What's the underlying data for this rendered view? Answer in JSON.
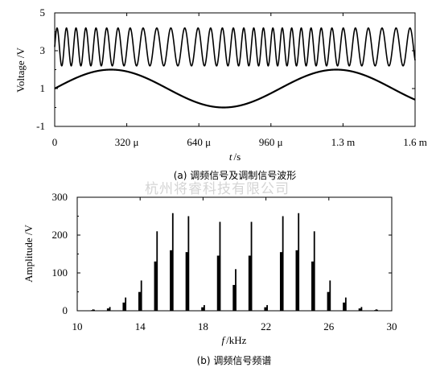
{
  "watermark": "杭州将睿科技有限公司",
  "chart_data": [
    {
      "type": "line",
      "caption": "(a) 调频信号及调制信号波形",
      "xlabel_italic": "t",
      "xlabel_unit": "/s",
      "ylabel": "Voltage /V",
      "xlim": [
        0,
        0.0016
      ],
      "ylim": [
        -1,
        5
      ],
      "xticks": [
        0,
        0.00032,
        0.00064,
        0.00096,
        0.00128,
        0.0016
      ],
      "xtick_labels": [
        "0",
        "320 μ",
        "640 μ",
        "960 μ",
        "1.3 m",
        "1.6 m"
      ],
      "yticks": [
        -1,
        1,
        3,
        5
      ],
      "ytick_labels": [
        "-1",
        "1",
        "3",
        "5"
      ],
      "series": [
        {
          "role": "fm-signal",
          "function": "sine-fm",
          "offset": 3.2,
          "amplitude": 1.0,
          "carrier_khz": 20,
          "deviation_khz": 4,
          "modulation_khz": 1
        },
        {
          "role": "modulating-signal",
          "function": "sine",
          "offset": 1.0,
          "amplitude": 1.0,
          "frequency_khz": 1
        }
      ]
    },
    {
      "type": "bar",
      "caption": "(b) 调频信号频谱",
      "xlabel_italic": "f",
      "xlabel_unit": "/kHz",
      "ylabel": "Amplitude /V",
      "xlim": [
        10,
        30
      ],
      "ylim": [
        0,
        300
      ],
      "xticks": [
        10,
        14,
        18,
        22,
        26,
        30
      ],
      "yticks": [
        0,
        100,
        200,
        300
      ],
      "x": [
        11,
        12,
        13,
        14,
        15,
        16,
        17,
        18,
        19,
        20,
        21,
        22,
        23,
        24,
        25,
        26,
        27,
        28,
        29
      ],
      "values": [
        3,
        10,
        35,
        80,
        210,
        258,
        250,
        15,
        235,
        110,
        235,
        15,
        250,
        258,
        210,
        80,
        35,
        10,
        3
      ]
    }
  ]
}
